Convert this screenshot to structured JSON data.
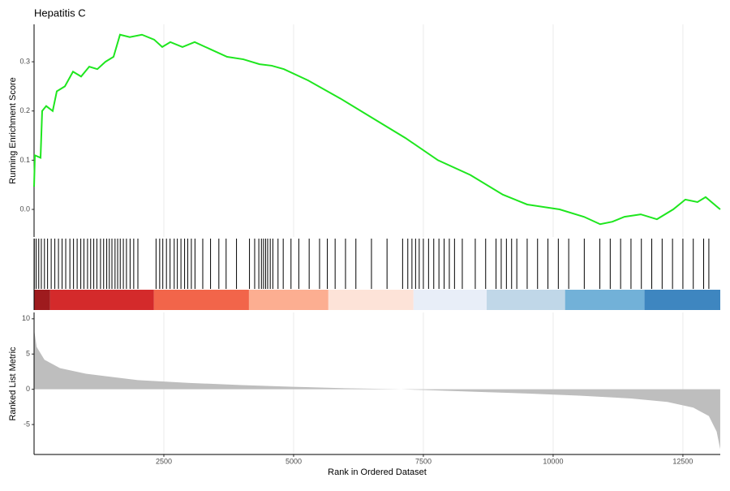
{
  "chart_data": [
    {
      "type": "line",
      "title": "Hepatitis C",
      "ylabel": "Running Enrichment Score",
      "color": "#1ee61e",
      "xlim": [
        0,
        13220
      ],
      "ylim": [
        -0.056,
        0.376
      ],
      "yticks": [
        {
          "value": 0,
          "label": "0.0"
        },
        0.1,
        0.2,
        0.3
      ],
      "x": [
        0,
        16,
        125,
        156,
        234,
        359,
        438,
        594,
        750,
        906,
        1063,
        1219,
        1375,
        1531,
        1656,
        1844,
        2078,
        2313,
        2469,
        2625,
        2859,
        3094,
        3406,
        3719,
        4031,
        4344,
        4578,
        4813,
        5281,
        5906,
        6531,
        7156,
        7781,
        8406,
        9031,
        9500,
        10125,
        10594,
        10906,
        11141,
        11375,
        11688,
        12000,
        12313,
        12547,
        12781,
        12938,
        13219
      ],
      "values": [
        0.046,
        0.11,
        0.105,
        0.2,
        0.21,
        0.2,
        0.24,
        0.25,
        0.28,
        0.27,
        0.29,
        0.285,
        0.3,
        0.31,
        0.355,
        0.35,
        0.355,
        0.345,
        0.33,
        0.34,
        0.33,
        0.34,
        0.325,
        0.31,
        0.305,
        0.295,
        0.292,
        0.285,
        0.262,
        0.225,
        0.185,
        0.145,
        0.1,
        0.07,
        0.03,
        0.01,
        0,
        -0.015,
        -0.03,
        -0.025,
        -0.015,
        -0.01,
        -0.02,
        0,
        0.02,
        0.015,
        0.025,
        0
      ],
      "hits": [
        5,
        40,
        90,
        140,
        200,
        260,
        330,
        400,
        470,
        540,
        610,
        690,
        760,
        830,
        900,
        960,
        1030,
        1090,
        1150,
        1210,
        1280,
        1340,
        1400,
        1450,
        1500,
        1560,
        1610,
        1660,
        1720,
        1780,
        1850,
        1920,
        2000,
        2350,
        2420,
        2480,
        2550,
        2620,
        2700,
        2760,
        2830,
        2900,
        2960,
        3030,
        3100,
        3250,
        3400,
        3560,
        3700,
        3900,
        4150,
        4250,
        4330,
        4380,
        4420,
        4460,
        4500,
        4550,
        4600,
        4700,
        4800,
        4950,
        5100,
        5300,
        5500,
        5650,
        5800,
        6000,
        6200,
        6500,
        6800,
        7100,
        7200,
        7280,
        7350,
        7420,
        7500,
        7600,
        7700,
        7800,
        7900,
        8000,
        8100,
        8250,
        8500,
        8700,
        8900,
        9000,
        9100,
        9200,
        9300,
        9500,
        9700,
        9900,
        10100,
        10300,
        10600,
        10900,
        11100,
        11300,
        11500,
        11700,
        11900,
        12100,
        12300,
        12500,
        12700,
        12900,
        13000
      ],
      "band": {
        "bins": [
          0,
          310,
          2310,
          4140,
          5670,
          7310,
          8720,
          10230,
          11760,
          13220
        ],
        "colors": [
          "#9e1b1e",
          "#d42a2b",
          "#f2654a",
          "#fcae91",
          "#fde3d8",
          "#e8eef8",
          "#c0d7e8",
          "#72b1d8",
          "#3e86c0"
        ]
      }
    },
    {
      "type": "area",
      "ylabel": "Ranked List Metric",
      "xlabel": "Rank in Ordered Dataset",
      "color": "#bebebe",
      "xlim": [
        0,
        13220
      ],
      "ylim": [
        -9.25,
        10.9
      ],
      "yticks": [
        10,
        5,
        0,
        -5
      ],
      "xticks": [
        2500,
        5000,
        7500,
        10000,
        12500
      ],
      "x": [
        0,
        50,
        200,
        500,
        1000,
        2000,
        3000,
        4000,
        5000,
        6000,
        7000,
        7500,
        8500,
        9500,
        10500,
        11500,
        12200,
        12700,
        13000,
        13150,
        13219
      ],
      "values": [
        8.5,
        6,
        4.2,
        3,
        2.2,
        1.3,
        0.9,
        0.6,
        0.35,
        0.15,
        0.02,
        -0.1,
        -0.35,
        -0.6,
        -0.9,
        -1.3,
        -1.8,
        -2.6,
        -3.8,
        -6,
        -8.5
      ]
    }
  ]
}
